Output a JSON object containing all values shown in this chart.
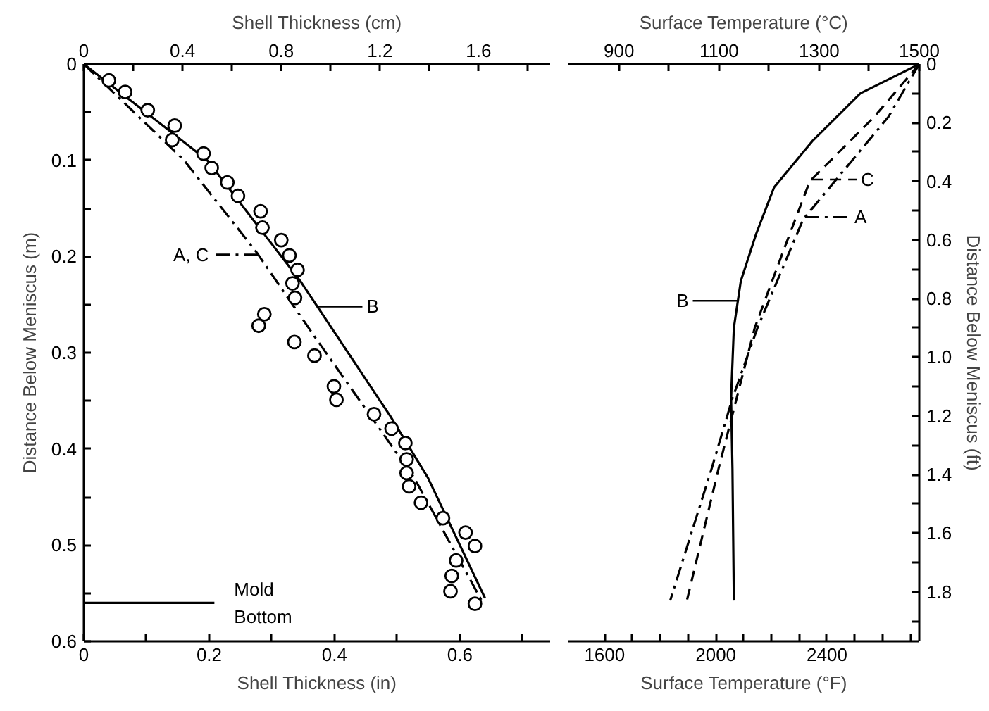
{
  "chart_data": [
    {
      "type": "line",
      "xlabel": "Shell Thickness (in)",
      "x2label": "Shell Thickness (cm)",
      "ylabel": "Distance Below Meniscus (m)",
      "xlim": [
        0,
        0.744
      ],
      "xticks": [
        0,
        {
          "value": 0.1,
          "label": null
        },
        0.2,
        {
          "value": 0.3,
          "label": null
        },
        0.4,
        {
          "value": 0.5,
          "label": null
        },
        0.6,
        {
          "value": 0.7,
          "label": null
        }
      ],
      "x2lim": [
        0,
        1.89
      ],
      "x2ticks": [
        0,
        {
          "value": 0.2,
          "label": null
        },
        0.4,
        {
          "value": 0.6,
          "label": null
        },
        0.8,
        {
          "value": 1.0,
          "label": null
        },
        1.2,
        {
          "value": 1.4,
          "label": null
        },
        1.6,
        {
          "value": 1.8,
          "label": null
        }
      ],
      "ylim": [
        0.6,
        0
      ],
      "yticks": [
        0,
        {
          "value": 0.05,
          "label": null
        },
        0.1,
        {
          "value": 0.15,
          "label": null
        },
        0.2,
        {
          "value": 0.25,
          "label": null
        },
        0.3,
        {
          "value": 0.35,
          "label": null
        },
        0.4,
        {
          "value": 0.45,
          "label": null
        },
        0.5,
        {
          "value": 0.55,
          "label": null
        },
        0.6
      ],
      "grid": false,
      "ref_lines": [
        {
          "axis": "y",
          "value": 0.56,
          "label": "Mold Bottom"
        }
      ],
      "series": [
        {
          "name": "A, C",
          "color": "#000000",
          "line_style": "dashdot",
          "x": [
            0,
            0.16,
            0.276,
            0.369,
            0.527,
            0.635
          ],
          "values": [
            0,
            0.1,
            0.196,
            0.284,
            0.43,
            0.558
          ]
        },
        {
          "name": "B",
          "color": "#000000",
          "line_style": "solid",
          "x": [
            0,
            0.197,
            0.346,
            0.489,
            0.549,
            0.64
          ],
          "values": [
            0,
            0.1,
            0.226,
            0.366,
            0.43,
            0.555
          ]
        },
        {
          "type": "scatter",
          "marker": "circle",
          "color": "#000000",
          "x": [
            0.04,
            0.066,
            0.102,
            0.145,
            0.141,
            0.191,
            0.204,
            0.229,
            0.246,
            0.282,
            0.285,
            0.315,
            0.328,
            0.341,
            0.333,
            0.337,
            0.288,
            0.279,
            0.336,
            0.368,
            0.399,
            0.403,
            0.463,
            0.491,
            0.513,
            0.515,
            0.515,
            0.519,
            0.538,
            0.573,
            0.609,
            0.624,
            0.594,
            0.587,
            0.585,
            0.624
          ],
          "values": [
            0.017,
            0.029,
            0.048,
            0.064,
            0.079,
            0.093,
            0.108,
            0.123,
            0.137,
            0.153,
            0.17,
            0.183,
            0.199,
            0.214,
            0.228,
            0.243,
            0.26,
            0.272,
            0.289,
            0.303,
            0.335,
            0.349,
            0.364,
            0.379,
            0.394,
            0.411,
            0.425,
            0.439,
            0.456,
            0.472,
            0.487,
            0.501,
            0.516,
            0.532,
            0.548,
            0.561
          ]
        }
      ]
    },
    {
      "type": "line",
      "xlabel": "Surface Temperature (°F)",
      "x2label": "Surface Temperature (°C)",
      "y2label": "Distance Below Meniscus (ft)",
      "xlim": [
        1470,
        2732
      ],
      "xticks": [
        1600,
        {
          "value": 1700,
          "label": null
        },
        {
          "value": 1800,
          "label": null
        },
        {
          "value": 1900,
          "label": null
        },
        2000,
        {
          "value": 2100,
          "label": null
        },
        {
          "value": 2200,
          "label": null
        },
        {
          "value": 2300,
          "label": null
        },
        2400,
        {
          "value": 2500,
          "label": null
        },
        {
          "value": 2600,
          "label": null
        },
        {
          "value": 2700,
          "label": null
        }
      ],
      "x2lim": [
        799,
        1500
      ],
      "x2ticks": [
        900,
        {
          "value": 1000,
          "label": null
        },
        1100,
        {
          "value": 1200,
          "label": null
        },
        1300,
        {
          "value": 1400,
          "label": null
        },
        1500
      ],
      "y2lim": [
        1.969,
        0
      ],
      "y2ticks": [
        0,
        {
          "value": 0.1,
          "label": null
        },
        0.2,
        {
          "value": 0.3,
          "label": null
        },
        0.4,
        {
          "value": 0.5,
          "label": null
        },
        0.6,
        {
          "value": 0.7,
          "label": null
        },
        0.8,
        {
          "value": 0.9,
          "label": null
        },
        {
          "value": 1,
          "label": "1.0"
        },
        {
          "value": 1.1,
          "label": null
        },
        1.2,
        {
          "value": 1.3,
          "label": null
        },
        1.4,
        {
          "value": 1.5,
          "label": null
        },
        1.6,
        {
          "value": 1.7,
          "label": null
        },
        1.8,
        {
          "value": 1.9,
          "label": null
        }
      ],
      "grid": false,
      "legend": "top right",
      "series": [
        {
          "name": "A",
          "color": "#000000",
          "line_style": "dashdot",
          "axis": "y2",
          "x": [
            2732,
            2621,
            2314,
            2150,
            2060,
            1985,
            1836
          ],
          "values": [
            0,
            0.18,
            0.53,
            0.9,
            1.14,
            1.38,
            1.83
          ]
        },
        {
          "name": "B",
          "color": "#000000",
          "line_style": "solid",
          "axis": "y2",
          "x": [
            2732,
            2520,
            2350,
            2210,
            2145,
            2090,
            2065,
            2055,
            2060,
            2065
          ],
          "values": [
            0,
            0.1,
            0.26,
            0.42,
            0.58,
            0.74,
            0.9,
            1.14,
            1.38,
            1.83
          ]
        },
        {
          "name": "C",
          "color": "#000000",
          "line_style": "dashed",
          "axis": "y2",
          "x": [
            2732,
            2570,
            2338,
            2246,
            2140,
            2075,
            2010,
            1896
          ],
          "values": [
            0,
            0.18,
            0.4,
            0.63,
            0.9,
            1.14,
            1.38,
            1.83
          ]
        }
      ]
    }
  ]
}
